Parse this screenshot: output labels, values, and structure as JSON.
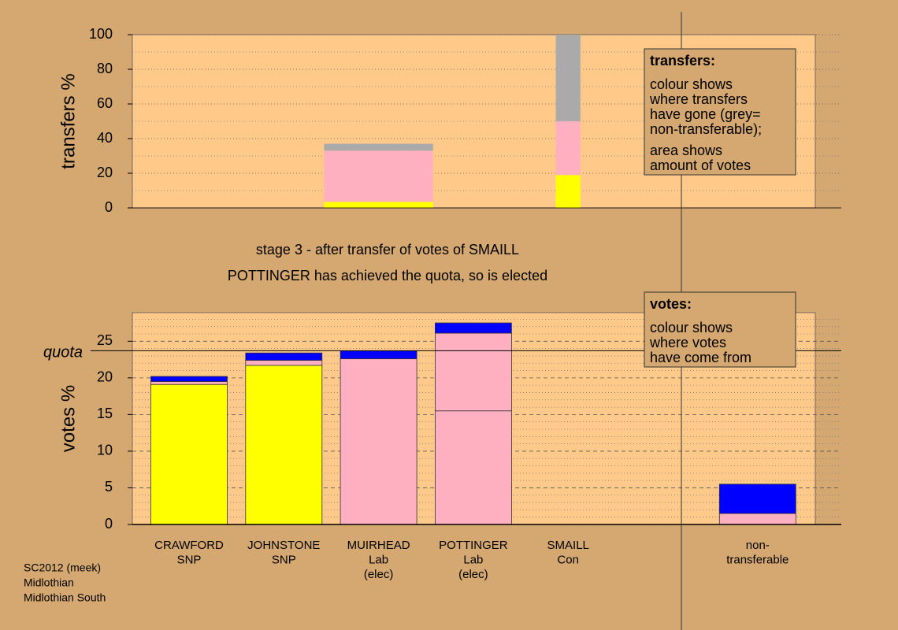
{
  "chart_data": [
    {
      "type": "bar",
      "stacked": true,
      "y_label": "transfers %",
      "ylim": [
        0,
        100
      ],
      "yticks": [
        0,
        20,
        40,
        60,
        80,
        100
      ],
      "minor_yticks": [
        10,
        30,
        50,
        70,
        90
      ],
      "widths": [
        0,
        0,
        1.15,
        0,
        0.26,
        0,
        0
      ],
      "series": [
        {
          "color": "#ffff00",
          "values": [
            0,
            0,
            3.5,
            0,
            19,
            0,
            0
          ]
        },
        {
          "color": "#ffb0c0",
          "values": [
            0,
            0,
            29.5,
            0,
            31,
            0,
            0
          ]
        },
        {
          "color": "#aaaaaa",
          "values": [
            0,
            0,
            4,
            0,
            50,
            0,
            0
          ]
        }
      ]
    },
    {
      "type": "bar",
      "stacked": true,
      "y_label": "votes %",
      "ylim": [
        0,
        28.9
      ],
      "yticks": [
        0,
        5,
        10,
        15,
        20,
        25
      ],
      "minor_yticks": [
        1,
        2,
        3,
        4,
        6,
        7,
        8,
        9,
        11,
        12,
        13,
        14,
        16,
        17,
        18,
        19,
        21,
        22,
        23,
        24,
        26,
        27,
        28
      ],
      "quota": 23.7,
      "quota_label": "quota",
      "categories": [
        [
          "CRAWFORD",
          "SNP"
        ],
        [
          "JOHNSTONE",
          "SNP"
        ],
        [
          "MUIRHEAD",
          "Lab",
          "(elec)"
        ],
        [
          "POTTINGER",
          "Lab",
          "(elec)"
        ],
        [
          "SMAILL",
          "Con"
        ],
        null,
        [
          "non-",
          "transferable"
        ]
      ],
      "series": [
        {
          "color": "#ffff00",
          "values": [
            19.1,
            21.7,
            0,
            0,
            0,
            0,
            0
          ]
        },
        {
          "color": "#ffb0c0",
          "values": [
            0.4,
            0.7,
            22.6,
            15.5,
            0,
            0,
            1.5
          ]
        },
        {
          "color": "#ffb0c0",
          "values": [
            0,
            0,
            0,
            10.6,
            0,
            0,
            0
          ]
        },
        {
          "color": "#0000ff",
          "values": [
            0.7,
            1.0,
            1.1,
            1.4,
            0,
            0,
            4.0
          ]
        }
      ]
    }
  ],
  "notes": [
    {
      "title": "transfers:",
      "paragraphs": [
        [
          "colour shows",
          "where transfers",
          "have gone (grey=",
          "non-transferable);"
        ],
        [
          "area shows",
          "amount of votes"
        ]
      ]
    },
    {
      "title": "votes:",
      "paragraphs": [
        [
          "colour shows",
          "where votes",
          "have come from"
        ]
      ]
    }
  ],
  "stage": "stage 3 - after transfer of votes of SMAILL",
  "status": "POTTINGER has achieved the quota, so is elected",
  "footer": [
    "SC2012 (meek)",
    "Midlothian",
    "Midlothian South"
  ]
}
